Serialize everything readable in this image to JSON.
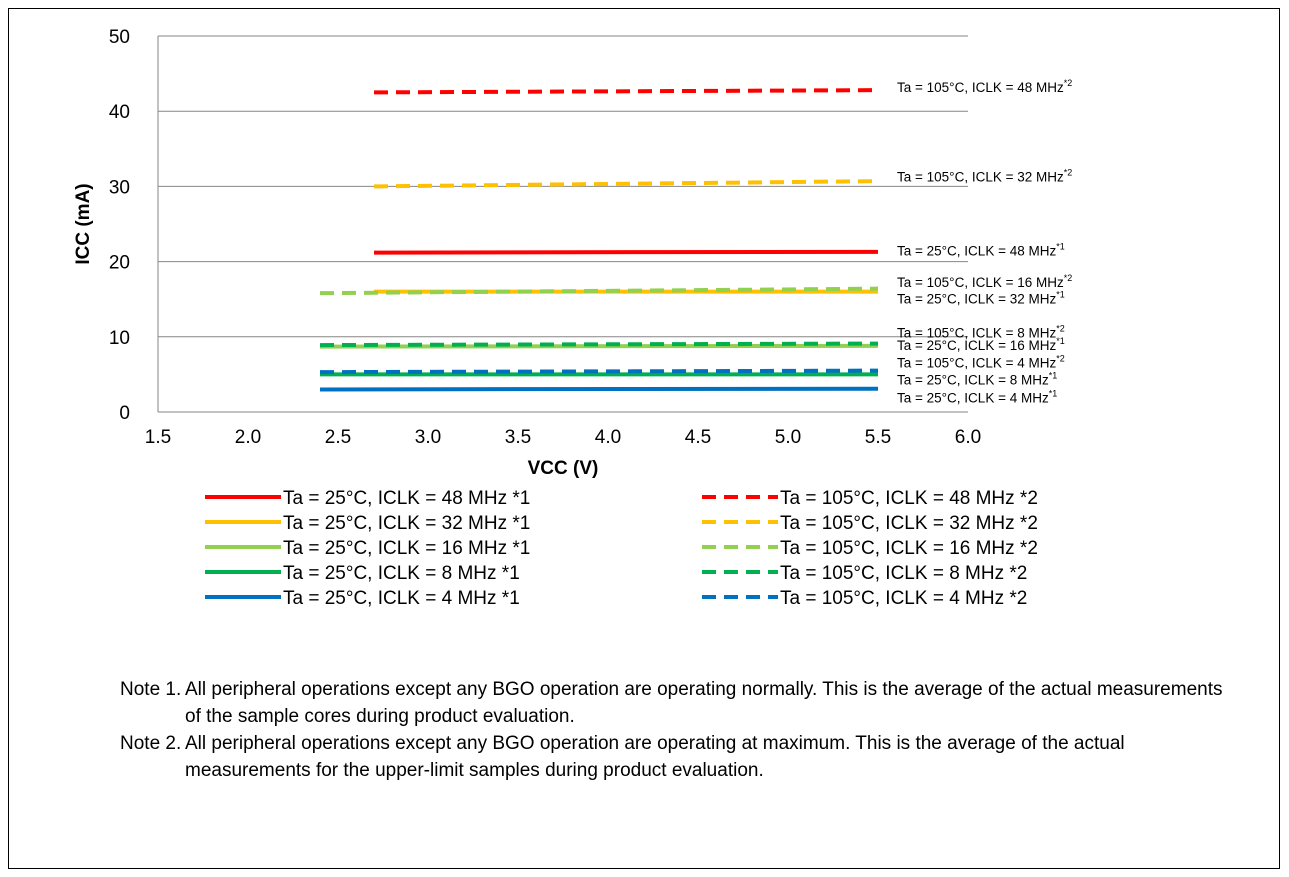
{
  "chart_data": {
    "type": "line",
    "xlabel": "VCC (V)",
    "ylabel": "ICC (mA)",
    "xlim": [
      1.5,
      6.0
    ],
    "ylim": [
      0,
      50
    ],
    "xticks": [
      "1.5",
      "2.0",
      "2.5",
      "3.0",
      "3.5",
      "4.0",
      "4.5",
      "5.0",
      "5.5",
      "6.0"
    ],
    "yticks": [
      "0",
      "10",
      "20",
      "30",
      "40",
      "50"
    ],
    "grid": "horizontal",
    "legend_position": "bottom",
    "series": [
      {
        "name": "Ta = 25°C, ICLK = 48 MHz *1",
        "style": "solid",
        "color": "#ff0000",
        "x": [
          2.7,
          5.5
        ],
        "y": [
          21.2,
          21.3
        ]
      },
      {
        "name": "Ta = 105°C, ICLK = 48 MHz *2",
        "style": "dashed",
        "color": "#ff0000",
        "x": [
          2.7,
          5.5
        ],
        "y": [
          42.5,
          42.8
        ]
      },
      {
        "name": "Ta = 25°C, ICLK = 32 MHz *1",
        "style": "solid",
        "color": "#ffc000",
        "x": [
          2.7,
          5.5
        ],
        "y": [
          16.0,
          16.0
        ]
      },
      {
        "name": "Ta = 105°C, ICLK = 32 MHz *2",
        "style": "dashed",
        "color": "#ffc000",
        "x": [
          2.7,
          5.5
        ],
        "y": [
          30.0,
          30.7
        ]
      },
      {
        "name": "Ta = 25°C, ICLK = 16 MHz *1",
        "style": "solid",
        "color": "#92d050",
        "x": [
          2.4,
          5.5
        ],
        "y": [
          8.7,
          8.8
        ]
      },
      {
        "name": "Ta = 105°C, ICLK = 16 MHz *2",
        "style": "dashed",
        "color": "#92d050",
        "x": [
          2.4,
          5.5
        ],
        "y": [
          15.8,
          16.4
        ]
      },
      {
        "name": "Ta = 25°C, ICLK = 8 MHz *1",
        "style": "solid",
        "color": "#00b050",
        "x": [
          2.4,
          5.5
        ],
        "y": [
          5.0,
          5.0
        ]
      },
      {
        "name": "Ta = 105°C, ICLK = 8 MHz *2",
        "style": "dashed",
        "color": "#00b050",
        "x": [
          2.4,
          5.5
        ],
        "y": [
          8.9,
          9.1
        ]
      },
      {
        "name": "Ta = 25°C, ICLK = 4 MHz *1",
        "style": "solid",
        "color": "#0070c0",
        "x": [
          2.4,
          5.5
        ],
        "y": [
          3.0,
          3.1
        ]
      },
      {
        "name": "Ta = 105°C, ICLK = 4 MHz *2",
        "style": "dashed",
        "color": "#0070c0",
        "x": [
          2.4,
          5.5
        ],
        "y": [
          5.3,
          5.5
        ]
      }
    ],
    "annotations": [
      {
        "text": "Ta = 105°C, ICLK = 48 MHz",
        "sup": "*2",
        "value": 43.2
      },
      {
        "text": "Ta = 105°C, ICLK = 32 MHz",
        "sup": "*2",
        "value": 31.3
      },
      {
        "text": "Ta = 25°C, ICLK = 48 MHz",
        "sup": "*1",
        "value": 21.5
      },
      {
        "text": "Ta = 105°C, ICLK = 16 MHz",
        "sup": "*2",
        "value": 17.3
      },
      {
        "text": "Ta = 25°C, ICLK = 32 MHz",
        "sup": "*1",
        "value": 15.1
      },
      {
        "text": "Ta = 105°C, ICLK = 8 MHz",
        "sup": "*2",
        "value": 10.6
      },
      {
        "text": "Ta = 25°C, ICLK = 16 MHz",
        "sup": "*1",
        "value": 8.9
      },
      {
        "text": "Ta = 105°C, ICLK = 4 MHz",
        "sup": "*2",
        "value": 6.6
      },
      {
        "text": "Ta = 25°C, ICLK = 8 MHz",
        "sup": "*1",
        "value": 4.3
      },
      {
        "text": "Ta = 25°C, ICLK = 4 MHz",
        "sup": "*1",
        "value": 1.9
      }
    ]
  },
  "notes": [
    {
      "label": "Note 1.",
      "text": "All peripheral operations except any BGO operation are operating normally. This is the average of the actual measurements of the sample cores during product evaluation."
    },
    {
      "label": "Note 2.",
      "text": "All peripheral operations except any BGO operation are operating at maximum. This is the average of the actual measurements for the upper-limit samples during product evaluation."
    }
  ]
}
